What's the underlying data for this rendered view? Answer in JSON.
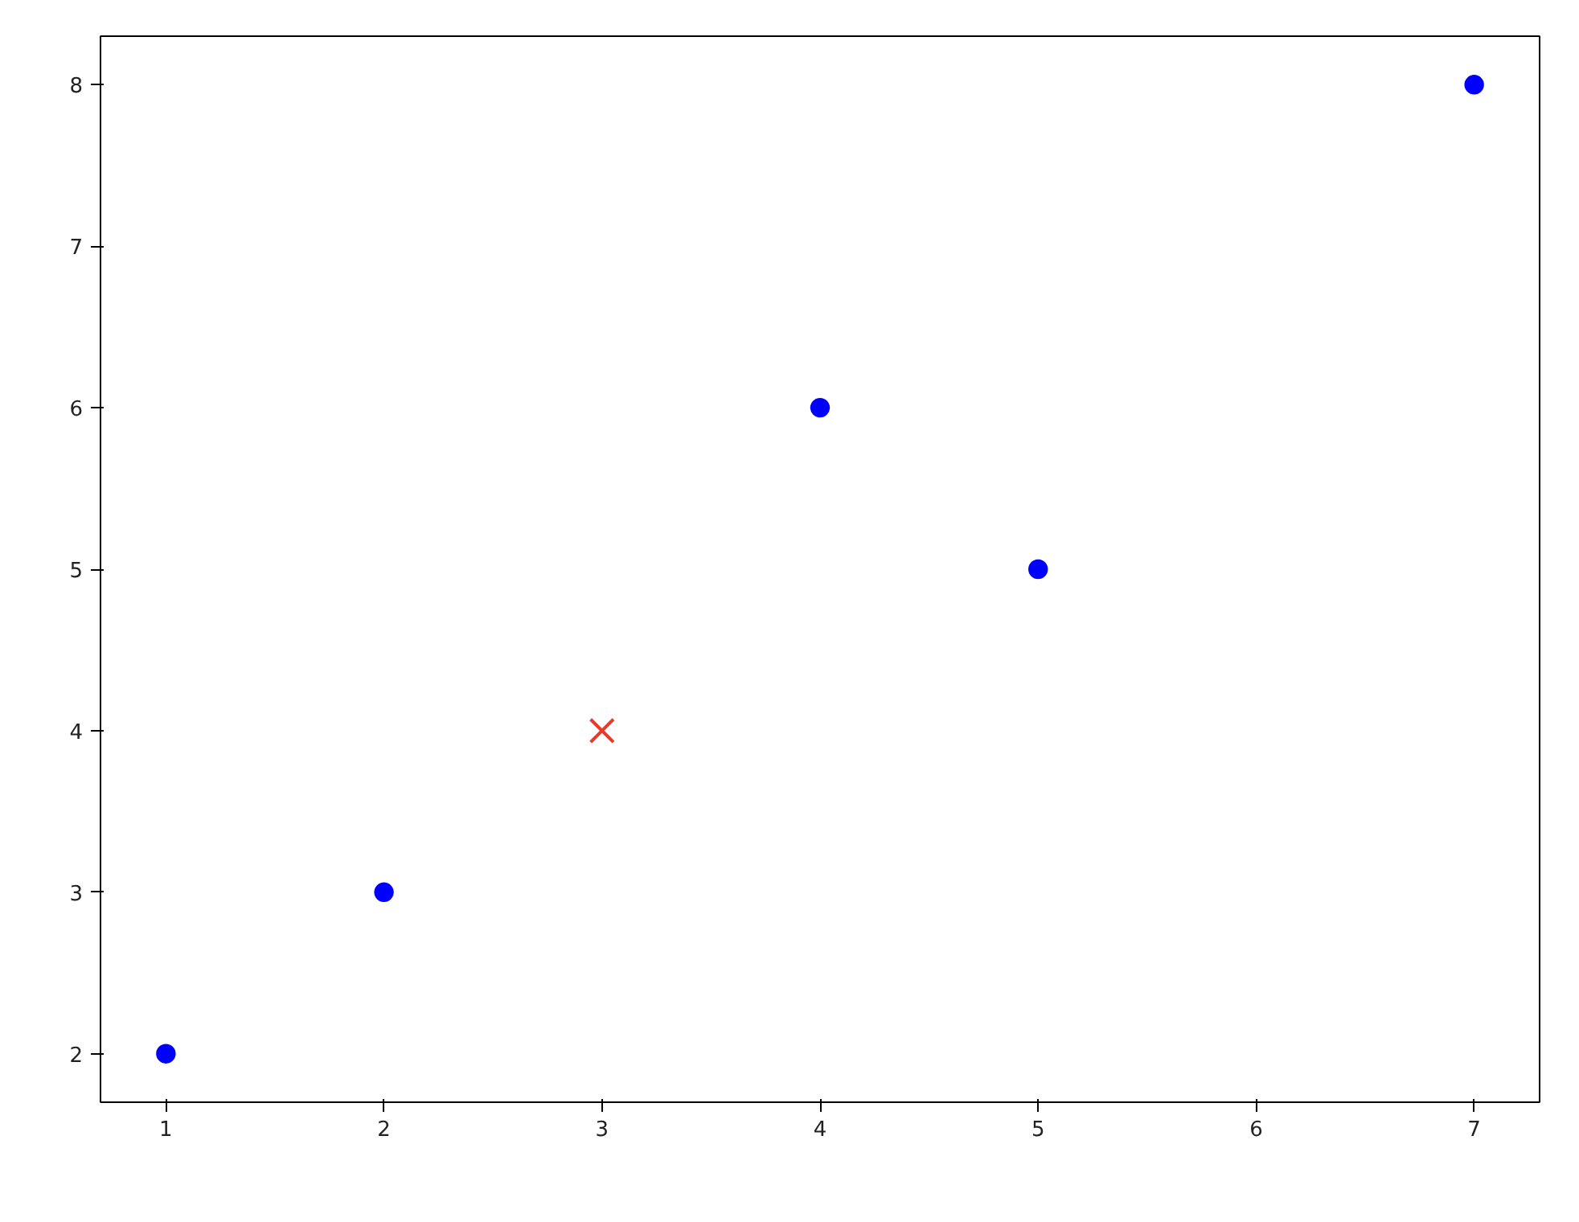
{
  "chart_data": {
    "type": "scatter",
    "xlim": [
      0.7,
      7.3
    ],
    "ylim": [
      1.7,
      8.3
    ],
    "xticks": [
      1,
      2,
      3,
      4,
      5,
      6,
      7
    ],
    "yticks": [
      2,
      3,
      4,
      5,
      6,
      7,
      8
    ],
    "grid": false,
    "series": [
      {
        "color": "#0000ff",
        "marker": "circle",
        "x": [
          1,
          2,
          4,
          5,
          7
        ],
        "values": [
          2,
          3,
          6,
          5,
          8
        ]
      },
      {
        "color": "#e8392b",
        "marker": "cross",
        "x": [
          3
        ],
        "values": [
          4
        ]
      }
    ]
  }
}
